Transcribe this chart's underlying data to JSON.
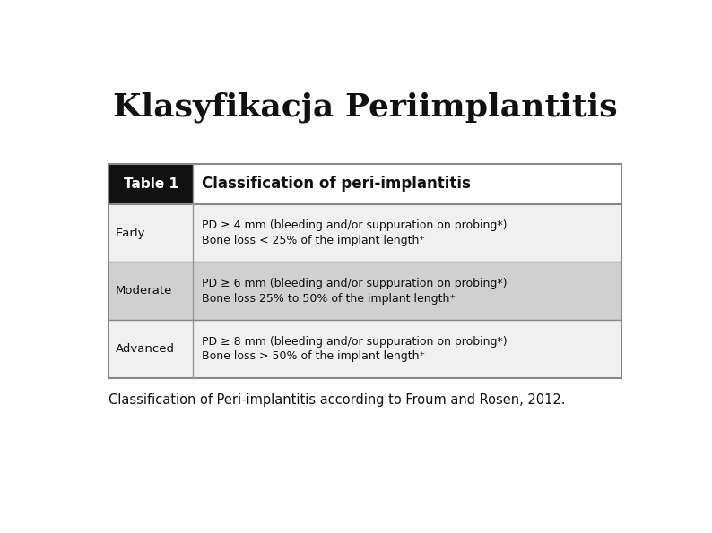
{
  "title": "Klasyfikacja Periimplantitis",
  "title_fontsize": 26,
  "title_fontfamily": "serif",
  "title_fontstyle": "normal",
  "title_fontweight": "bold",
  "caption": "Classification of Peri-implantitis according to Froum and Rosen, 2012.",
  "caption_fontsize": 10.5,
  "header_label": "Table 1",
  "header_title": "Classification of peri-implantitis",
  "header_bg": "#111111",
  "header_text_color": "#ffffff",
  "header_title_color": "#111111",
  "header_right_bg": "#ffffff",
  "table_border_color": "#888888",
  "row_colors": [
    "#f0f0f0",
    "#d0d0d0",
    "#f0f0f0"
  ],
  "rows": [
    {
      "label": "Early",
      "line1": "PD ≥ 4 mm (bleeding and/or suppuration on probing*)",
      "line2": "Bone loss < 25% of the implant length⁺"
    },
    {
      "label": "Moderate",
      "line1": "PD ≥ 6 mm (bleeding and/or suppuration on probing*)",
      "line2": "Bone loss 25% to 50% of the implant length⁺"
    },
    {
      "label": "Advanced",
      "line1": "PD ≥ 8 mm (bleeding and/or suppuration on probing*)",
      "line2": "Bone loss > 50% of the implant length⁺"
    }
  ],
  "bg_color": "#ffffff",
  "fig_width": 7.94,
  "fig_height": 5.95
}
